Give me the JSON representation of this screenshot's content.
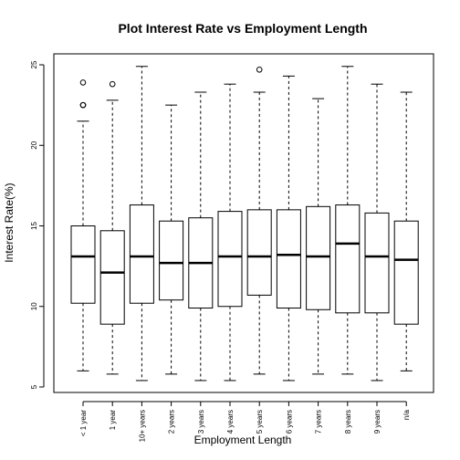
{
  "chart_data": {
    "type": "boxplot",
    "title": "Plot Interest Rate vs Employment Length",
    "xlabel": "Employment Length",
    "ylabel": "Interest Rate(%)",
    "ylim": [
      5,
      25
    ],
    "yticks": [
      5,
      10,
      15,
      20,
      25
    ],
    "categories": [
      "< 1 year",
      "1 year",
      "10+ years",
      "2 years",
      "3 years",
      "4 years",
      "5 years",
      "6 years",
      "7 years",
      "8 years",
      "9 years",
      "n/a"
    ],
    "boxes": [
      {
        "category": "< 1 year",
        "min": 6.0,
        "q1": 10.2,
        "median": 13.1,
        "q3": 15.0,
        "max": 21.5,
        "outliers": [
          22.5,
          22.5,
          23.9
        ]
      },
      {
        "category": "1 year",
        "min": 5.8,
        "q1": 8.9,
        "median": 12.1,
        "q3": 14.7,
        "max": 22.8,
        "outliers": [
          23.8
        ]
      },
      {
        "category": "10+ years",
        "min": 5.4,
        "q1": 10.2,
        "median": 13.1,
        "q3": 16.3,
        "max": 24.9,
        "outliers": []
      },
      {
        "category": "2 years",
        "min": 5.8,
        "q1": 10.4,
        "median": 12.7,
        "q3": 15.3,
        "max": 22.5,
        "outliers": []
      },
      {
        "category": "3 years",
        "min": 5.4,
        "q1": 9.9,
        "median": 12.7,
        "q3": 15.5,
        "max": 23.3,
        "outliers": []
      },
      {
        "category": "4 years",
        "min": 5.4,
        "q1": 10.0,
        "median": 13.1,
        "q3": 15.9,
        "max": 23.8,
        "outliers": []
      },
      {
        "category": "5 years",
        "min": 5.8,
        "q1": 10.7,
        "median": 13.1,
        "q3": 16.0,
        "max": 23.3,
        "outliers": [
          24.7
        ]
      },
      {
        "category": "6 years",
        "min": 5.4,
        "q1": 9.9,
        "median": 13.2,
        "q3": 16.0,
        "max": 24.3,
        "outliers": []
      },
      {
        "category": "7 years",
        "min": 5.8,
        "q1": 9.8,
        "median": 13.1,
        "q3": 16.2,
        "max": 22.9,
        "outliers": []
      },
      {
        "category": "8 years",
        "min": 5.8,
        "q1": 9.6,
        "median": 13.9,
        "q3": 16.3,
        "max": 24.9,
        "outliers": []
      },
      {
        "category": "9 years",
        "min": 5.4,
        "q1": 9.6,
        "median": 13.1,
        "q3": 15.8,
        "max": 23.8,
        "outliers": []
      },
      {
        "category": "n/a",
        "min": 6.0,
        "q1": 8.9,
        "median": 12.9,
        "q3": 15.3,
        "max": 23.3,
        "outliers": []
      }
    ],
    "grid": false,
    "legend": "none"
  }
}
